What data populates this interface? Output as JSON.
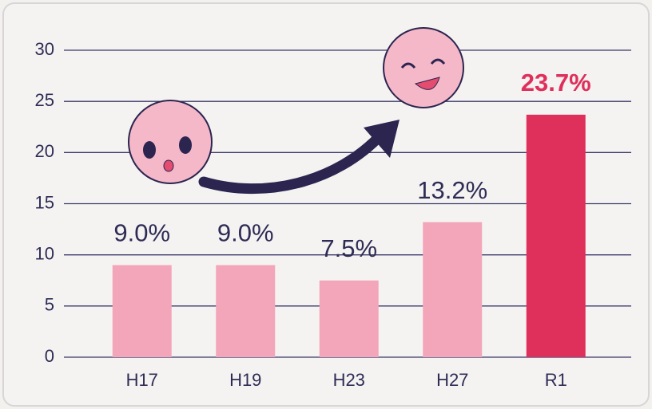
{
  "chart_data": {
    "type": "bar",
    "categories": [
      "H17",
      "H19",
      "H23",
      "H27",
      "R1"
    ],
    "values": [
      9.0,
      9.0,
      7.5,
      13.2,
      23.7
    ],
    "value_labels": [
      "9.0%",
      "9.0%",
      "7.5%",
      "13.2%",
      "23.7%"
    ],
    "colors": [
      "#f3a6ba",
      "#f3a6ba",
      "#f3a6ba",
      "#f3a6ba",
      "#df2f5b"
    ],
    "value_label_colors": [
      "#2e2c55",
      "#2e2c55",
      "#2e2c55",
      "#2e2c55",
      "#df2f5b"
    ],
    "ylim": [
      0,
      30
    ],
    "yticks": [
      0,
      5,
      10,
      15,
      20,
      25,
      30
    ],
    "grid": true
  }
}
